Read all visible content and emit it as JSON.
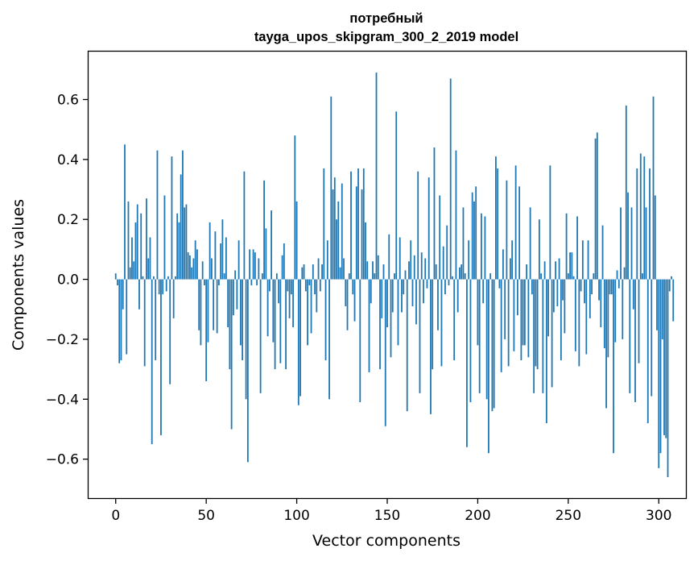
{
  "chart_data": {
    "type": "bar",
    "title_line1": "потребный",
    "title_line2": "tayga_upos_skipgram_300_2_2019 model",
    "xlabel": "Vector components",
    "ylabel": "Components values",
    "xlim": [
      -15,
      315
    ],
    "ylim": [
      -0.73,
      0.76
    ],
    "xticks": [
      0,
      50,
      100,
      150,
      200,
      250,
      300
    ],
    "xtick_labels": [
      "0",
      "50",
      "100",
      "150",
      "200",
      "250",
      "300"
    ],
    "yticks": [
      -0.6,
      -0.4,
      -0.2,
      0.0,
      0.2,
      0.4,
      0.6
    ],
    "ytick_labels": [
      "−0.6",
      "−0.4",
      "−0.2",
      "0.0",
      "0.2",
      "0.4",
      "0.6"
    ],
    "grid": false,
    "bar_color": "#1f77b4",
    "x_start": 0,
    "values": [
      0.02,
      -0.02,
      -0.28,
      -0.27,
      -0.1,
      0.45,
      -0.25,
      0.26,
      0.04,
      0.14,
      0.06,
      0.19,
      0.25,
      -0.1,
      0.22,
      0.01,
      -0.29,
      0.27,
      0.07,
      0.14,
      -0.55,
      0.01,
      -0.27,
      0.43,
      -0.05,
      -0.52,
      -0.05,
      0.28,
      -0.04,
      0.01,
      -0.35,
      0.41,
      -0.13,
      0.01,
      0.22,
      0.19,
      0.35,
      0.43,
      0.24,
      0.25,
      0.09,
      0.08,
      0.04,
      0.07,
      0.13,
      0.1,
      -0.17,
      -0.22,
      0.06,
      -0.02,
      -0.34,
      -0.21,
      0.19,
      0.07,
      -0.17,
      0.16,
      -0.18,
      -0.02,
      0.12,
      0.2,
      0.02,
      0.14,
      -0.16,
      -0.3,
      -0.5,
      -0.12,
      0.03,
      -0.1,
      0.13,
      -0.22,
      -0.27,
      0.36,
      -0.4,
      -0.61,
      0.1,
      -0.02,
      0.1,
      0.09,
      -0.02,
      0.07,
      -0.38,
      0.02,
      0.33,
      0.17,
      -0.19,
      -0.04,
      0.23,
      -0.21,
      -0.3,
      0.02,
      -0.08,
      -0.28,
      0.08,
      0.12,
      -0.3,
      -0.04,
      -0.13,
      -0.05,
      -0.16,
      0.48,
      0.26,
      -0.42,
      -0.39,
      0.04,
      0.05,
      -0.04,
      -0.22,
      -0.02,
      -0.18,
      0.05,
      -0.05,
      -0.11,
      0.07,
      -0.04,
      0.05,
      0.37,
      -0.27,
      0.13,
      -0.4,
      0.61,
      0.3,
      0.34,
      0.2,
      0.26,
      0.04,
      0.32,
      0.07,
      -0.09,
      -0.17,
      0.02,
      0.36,
      -0.05,
      -0.14,
      0.31,
      0.37,
      -0.41,
      0.3,
      0.37,
      0.19,
      0.06,
      -0.31,
      -0.08,
      0.06,
      0.02,
      0.69,
      0.08,
      -0.3,
      -0.13,
      0.05,
      -0.49,
      -0.16,
      0.15,
      -0.26,
      -0.11,
      0.02,
      0.56,
      -0.22,
      0.14,
      -0.11,
      -0.05,
      0.03,
      -0.44,
      0.06,
      0.13,
      -0.09,
      0.08,
      -0.15,
      0.36,
      -0.38,
      0.09,
      -0.08,
      0.07,
      -0.03,
      0.34,
      -0.45,
      -0.3,
      0.44,
      0.05,
      -0.17,
      0.28,
      -0.29,
      0.11,
      -0.05,
      0.18,
      -0.02,
      0.67,
      0.01,
      -0.27,
      0.43,
      -0.11,
      0.04,
      0.05,
      0.24,
      0.02,
      -0.56,
      0.13,
      -0.41,
      0.29,
      0.26,
      0.31,
      -0.22,
      -0.38,
      0.22,
      -0.08,
      0.21,
      -0.4,
      -0.58,
      0.02,
      -0.44,
      -0.43,
      0.41,
      0.37,
      -0.03,
      -0.31,
      0.1,
      -0.2,
      0.33,
      -0.29,
      0.07,
      0.13,
      -0.24,
      0.38,
      -0.12,
      0.31,
      -0.27,
      -0.22,
      -0.22,
      0.05,
      -0.26,
      0.24,
      -0.05,
      -0.38,
      -0.29,
      -0.3,
      0.2,
      0.02,
      -0.38,
      0.06,
      -0.48,
      -0.19,
      0.38,
      -0.36,
      -0.11,
      0.06,
      -0.09,
      0.07,
      -0.27,
      -0.07,
      -0.18,
      0.22,
      0.02,
      0.09,
      0.09,
      0.01,
      -0.24,
      0.21,
      -0.29,
      -0.04,
      0.13,
      -0.08,
      -0.25,
      0.13,
      -0.13,
      -0.05,
      0.02,
      0.47,
      0.49,
      -0.07,
      -0.16,
      0.18,
      -0.23,
      -0.43,
      -0.26,
      -0.05,
      -0.05,
      -0.58,
      -0.21,
      0.03,
      -0.03,
      0.24,
      -0.2,
      0.04,
      0.58,
      0.29,
      -0.38,
      0.24,
      -0.1,
      -0.41,
      0.37,
      -0.28,
      0.42,
      0.02,
      0.41,
      0.24,
      -0.48,
      0.37,
      -0.39,
      0.61,
      0.28,
      -0.17,
      -0.63,
      -0.58,
      -0.2,
      -0.52,
      -0.53,
      -0.66,
      -0.04,
      0.01,
      -0.14
    ]
  }
}
